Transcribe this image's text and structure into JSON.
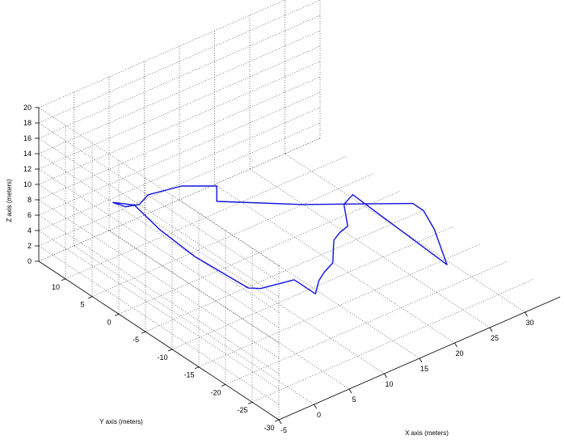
{
  "chart_data": {
    "type": "line3d",
    "xlabel": "X axis (meters)",
    "ylabel": "Y axis (meters)",
    "zlabel": "Z axis (meters)",
    "xlim": [
      -5,
      35
    ],
    "ylim": [
      -30,
      15
    ],
    "zlim": [
      0,
      20
    ],
    "xticks": [
      -5,
      0,
      5,
      10,
      15,
      20,
      25,
      30
    ],
    "yticks": [
      -30,
      -25,
      -20,
      -15,
      -10,
      -5,
      0,
      5,
      10
    ],
    "zticks": [
      0,
      2,
      4,
      6,
      8,
      10,
      12,
      14,
      16,
      18,
      20
    ],
    "grid": true,
    "series": [
      {
        "color": "#1010e0",
        "points": [
          [
            26.5,
            -20.0,
            3.0
          ],
          [
            30.0,
            -13.0,
            3.0
          ],
          [
            31.5,
            -9.0,
            3.0
          ],
          [
            31.5,
            -7.0,
            3.0
          ],
          [
            28.0,
            -4.0,
            3.0
          ],
          [
            22.0,
            1.0,
            3.0
          ],
          [
            16.0,
            7.0,
            3.0
          ],
          [
            15.0,
            8.0,
            3.0
          ],
          [
            15.0,
            8.0,
            5.0
          ],
          [
            10.0,
            8.0,
            7.0
          ],
          [
            6.0,
            9.0,
            7.0
          ],
          [
            4.0,
            8.0,
            7.0
          ],
          [
            2.0,
            8.0,
            7.5
          ],
          [
            1.0,
            9.0,
            8.0
          ],
          [
            1.0,
            5.0,
            9.5
          ],
          [
            0.0,
            -1.0,
            9.5
          ],
          [
            -1.0,
            -9.0,
            10.0
          ],
          [
            -1.0,
            -19.0,
            10.5
          ],
          [
            0.0,
            -20.0,
            10.5
          ],
          [
            4.0,
            -21.0,
            10.5
          ],
          [
            4.0,
            -25.0,
            10.5
          ],
          [
            6.0,
            -23.0,
            10.5
          ],
          [
            7.5,
            -22.0,
            10.5
          ],
          [
            9.5,
            -21.0,
            10.5
          ],
          [
            13.0,
            -16.5,
            9.0
          ],
          [
            18.0,
            -10.0,
            5.0
          ],
          [
            21.5,
            -6.5,
            3.0
          ],
          [
            23.0,
            -6.0,
            3.0
          ],
          [
            25.5,
            -2.0,
            3.0
          ],
          [
            27.5,
            -1.0,
            3.0
          ],
          [
            26.5,
            -20.0,
            3.0
          ]
        ]
      }
    ]
  }
}
